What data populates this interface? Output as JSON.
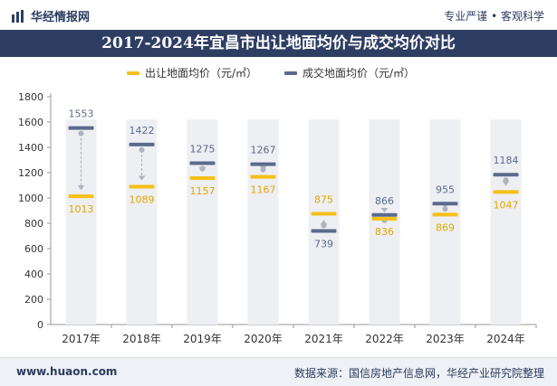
{
  "header": {
    "brand": "华经情报网",
    "slogan": "专业严谨 • 客观科学"
  },
  "footer": {
    "url": "www.huaon.com",
    "source": "数据来源：国信房地产信息网，华经产业研究院整理"
  },
  "colors": {
    "land_supply": "#f5c018",
    "land_deal": "#5b6a8c",
    "column_bg": "#edeff3",
    "title_bg": "#2e3e63"
  },
  "chart_data": {
    "type": "line",
    "title": "2017-2024年宜昌市出让地面均价与成交均价对比",
    "categories": [
      "2017年",
      "2018年",
      "2019年",
      "2020年",
      "2021年",
      "2022年",
      "2023年",
      "2024年"
    ],
    "series": [
      {
        "name": "出让地面均价（元/㎡）",
        "color": "#f5c018",
        "values": [
          1013,
          1089,
          1157,
          1167,
          875,
          836,
          869,
          1047
        ]
      },
      {
        "name": "成交地面均价（元/㎡）",
        "color": "#5b6a8c",
        "values": [
          1553,
          1422,
          1275,
          1267,
          739,
          866,
          955,
          1184
        ]
      }
    ],
    "yticks": [
      0,
      200,
      400,
      600,
      800,
      1000,
      1200,
      1400,
      1600,
      1800
    ],
    "ylim": [
      0,
      1800
    ],
    "xlabel": "",
    "ylabel": "",
    "grid": false,
    "legend_position": "top"
  }
}
